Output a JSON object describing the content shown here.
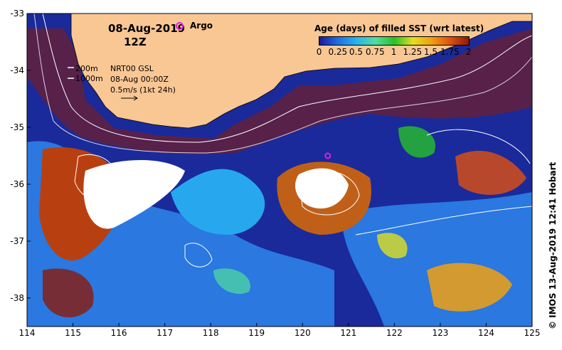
{
  "header": {
    "date": "08-Aug-2019",
    "hour": "12Z",
    "argo_label": "Argo"
  },
  "annotations": {
    "depth_200": "200m",
    "depth_1000": "1000m",
    "model_name": "NRT00 GSL",
    "model_time": "08-Aug 00:00Z",
    "vector_scale": "0.5m/s (1kt 24h)"
  },
  "legend": {
    "title": "Age (days) of filled SST (wrt latest)",
    "ticks": [
      "0",
      "0.25",
      "0.5",
      "0.75",
      "1",
      "1.25",
      "1.5",
      "1.75",
      "2"
    ],
    "range": [
      0,
      2
    ],
    "colors": [
      "#1a1a9a",
      "#1f6fe6",
      "#27b4ee",
      "#52dda0",
      "#27c02a",
      "#e0e020",
      "#f0a010",
      "#e05010",
      "#8a1a0a"
    ]
  },
  "axes": {
    "lon_ticks": [
      "114",
      "115",
      "116",
      "117",
      "118",
      "119",
      "120",
      "121",
      "122",
      "123",
      "124",
      "125"
    ],
    "lat_ticks": [
      "-33",
      "-34",
      "-35",
      "-36",
      "-37",
      "-38"
    ],
    "lon_range": [
      114,
      125
    ],
    "lat_range": [
      -38.5,
      -33
    ]
  },
  "argo_float": {
    "lon": 120.55,
    "lat": -35.5
  },
  "colors": {
    "land": "#f9c794",
    "ocean_deep": "#1a2a9a",
    "ocean_mid": "#2a78e0",
    "ocean_light": "#27a8ee",
    "contour": "#ffffff"
  },
  "credit": "© IMOS 13-Aug-2019 12:41 Hobart"
}
